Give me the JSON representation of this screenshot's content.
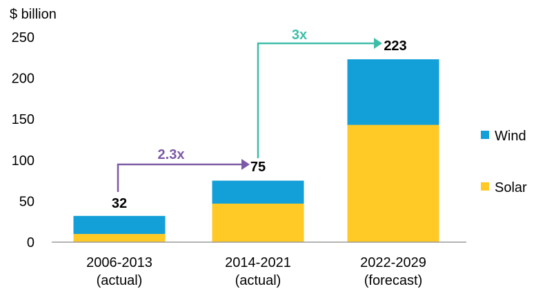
{
  "chart_data": {
    "type": "bar",
    "stacked": true,
    "unit_label": "$ billion",
    "ylim": [
      0,
      250
    ],
    "yticks": [
      "250",
      "200",
      "150",
      "100",
      "50",
      "0"
    ],
    "categories": [
      [
        "2006-2013",
        "(actual)"
      ],
      [
        "2014-2021",
        "(actual)"
      ],
      [
        "2022-2029",
        "(forecast)"
      ]
    ],
    "series": [
      {
        "name": "Solar",
        "color": "#FFC926",
        "values": [
          10,
          47,
          143
        ]
      },
      {
        "name": "Wind",
        "color": "#139FD8",
        "values": [
          22,
          28,
          80
        ]
      }
    ],
    "totals": [
      "32",
      "75",
      "223"
    ],
    "growth_annotations": [
      {
        "label": "2.3x",
        "from": 0,
        "to": 1,
        "color": "#7B59A6"
      },
      {
        "label": "3x",
        "from": 1,
        "to": 2,
        "color": "#3DBDA8"
      }
    ],
    "legend": [
      {
        "name": "Wind",
        "color": "#139FD8"
      },
      {
        "name": "Solar",
        "color": "#FFC926"
      }
    ],
    "legend_position": "right",
    "grid": false
  }
}
